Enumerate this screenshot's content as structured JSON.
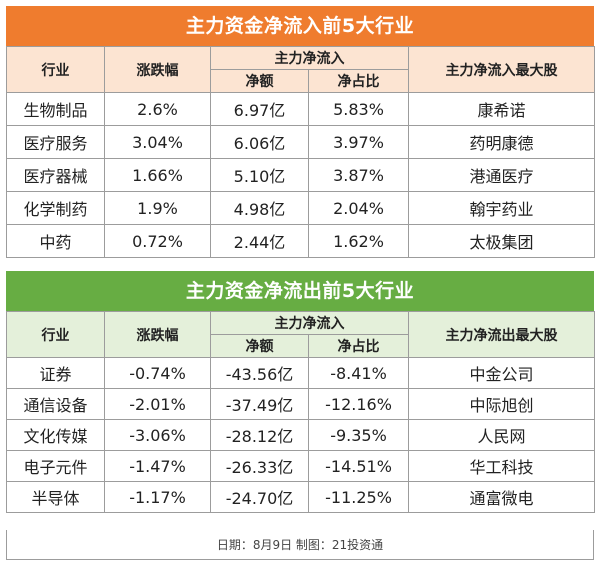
{
  "inflow": {
    "title": "主力资金净流入前5大行业",
    "headers": {
      "industry": "行业",
      "change": "涨跌幅",
      "group": "主力净流入",
      "amount": "净额",
      "ratio": "净占比",
      "top_stock": "主力净流入最大股"
    },
    "rows": [
      {
        "industry": "生物制品",
        "change": "2.6%",
        "amount": "6.97亿",
        "ratio": "5.83%",
        "stock": "康希诺"
      },
      {
        "industry": "医疗服务",
        "change": "3.04%",
        "amount": "6.06亿",
        "ratio": "3.97%",
        "stock": "药明康德"
      },
      {
        "industry": "医疗器械",
        "change": "1.66%",
        "amount": "5.10亿",
        "ratio": "3.87%",
        "stock": "港通医疗"
      },
      {
        "industry": "化学制药",
        "change": "1.9%",
        "amount": "4.98亿",
        "ratio": "2.04%",
        "stock": "翰宇药业"
      },
      {
        "industry": "中药",
        "change": "0.72%",
        "amount": "2.44亿",
        "ratio": "1.62%",
        "stock": "太极集团"
      }
    ]
  },
  "outflow": {
    "title": "主力资金净流出前5大行业",
    "headers": {
      "industry": "行业",
      "change": "涨跌幅",
      "group": "主力净流入",
      "amount": "净额",
      "ratio": "净占比",
      "top_stock": "主力净流出最大股"
    },
    "rows": [
      {
        "industry": "证券",
        "change": "-0.74%",
        "amount": "-43.56亿",
        "ratio": "-8.41%",
        "stock": "中金公司"
      },
      {
        "industry": "通信设备",
        "change": "-2.01%",
        "amount": "-37.49亿",
        "ratio": "-12.16%",
        "stock": "中际旭创"
      },
      {
        "industry": "文化传媒",
        "change": "-3.06%",
        "amount": "-28.12亿",
        "ratio": "-9.35%",
        "stock": "人民网"
      },
      {
        "industry": "电子元件",
        "change": "-1.47%",
        "amount": "-26.33亿",
        "ratio": "-14.51%",
        "stock": "华工科技"
      },
      {
        "industry": "半导体",
        "change": "-1.17%",
        "amount": "-24.70亿",
        "ratio": "-11.25%",
        "stock": "通富微电"
      }
    ]
  },
  "footer": "日期：8月9日 制图：21投资通",
  "colors": {
    "inflow_title_bg": "#ef7c2e",
    "inflow_header_bg": "#fce4d2",
    "outflow_title_bg": "#67ad43",
    "outflow_header_bg": "#e4f0da"
  }
}
